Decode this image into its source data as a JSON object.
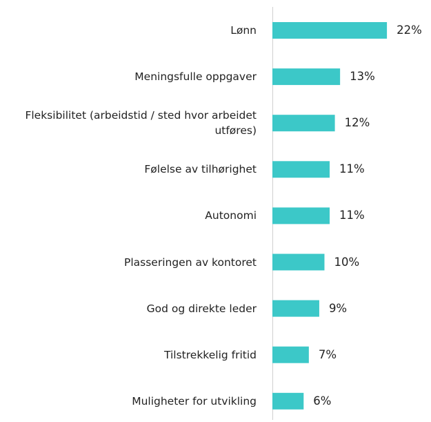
{
  "chart_data": {
    "type": "bar",
    "orientation": "horizontal",
    "categories": [
      "Lønn",
      "Meningsfulle oppgaver",
      "Fleksibilitet (arbeidstid / sted hvor arbeidet utføres)",
      "Følelse av tilhørighet",
      "Autonomi",
      "Plasseringen av kontoret",
      "God og direkte leder",
      "Tilstrekkelig fritid",
      "Muligheter for utvikling"
    ],
    "values": [
      22,
      13,
      12,
      11,
      11,
      10,
      9,
      7,
      6
    ],
    "value_labels": [
      "22%",
      "13%",
      "12%",
      "11%",
      "11%",
      "10%",
      "9%",
      "7%",
      "6%"
    ],
    "color": "#3cc8c8"
  }
}
